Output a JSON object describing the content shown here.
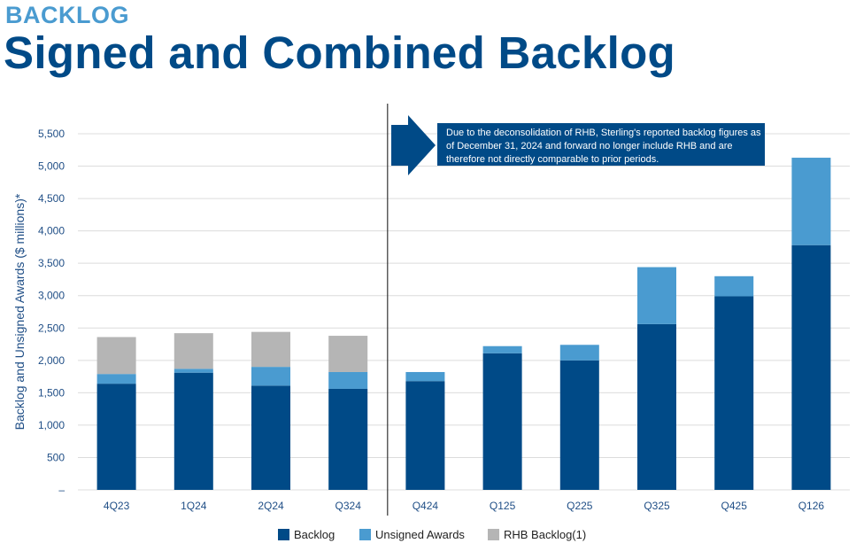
{
  "header": {
    "eyebrow": "BACKLOG",
    "title": "Signed and Combined Backlog"
  },
  "note": {
    "text": "Due to the deconsolidation of RHB, Sterling's reported backlog figures as of December 31, 2024 and forward no longer include RHB and are therefore not directly comparable to prior periods."
  },
  "colors": {
    "brand_light": "#4a9bd0",
    "brand_dark": "#004a87",
    "backlog": "#004a87",
    "unsigned": "#4a9bd0",
    "rhb": "#b5b5b5",
    "grid": "#dcdcdc",
    "tick": "#1f4e86",
    "divider": "#333333"
  },
  "chart_data": {
    "type": "bar",
    "stacked": true,
    "categories": [
      "4Q23",
      "1Q24",
      "2Q24",
      "Q324",
      "Q424",
      "Q125",
      "Q225",
      "Q325",
      "Q425",
      "Q126"
    ],
    "series": [
      {
        "name": "Backlog",
        "values": [
          1640,
          1810,
          1610,
          1560,
          1680,
          2110,
          2000,
          2560,
          2990,
          3780
        ]
      },
      {
        "name": "Unsigned Awards",
        "values": [
          150,
          60,
          290,
          260,
          140,
          110,
          240,
          880,
          310,
          1350
        ]
      },
      {
        "name": "RHB Backlog(1)",
        "values": [
          570,
          550,
          540,
          560,
          0,
          0,
          0,
          0,
          0,
          0
        ]
      }
    ],
    "ylabel": "Backlog and Unsigned Awards ($ millions)*",
    "xlabel": "",
    "ylim": [
      0,
      5500
    ],
    "yticks": [
      "–",
      "500",
      "1,000",
      "1,500",
      "2,000",
      "2,500",
      "3,000",
      "3,500",
      "4,000",
      "4,500",
      "5,000",
      "5,500"
    ],
    "grid": true,
    "legend": "bottom",
    "divider_after_category": "Q324"
  }
}
